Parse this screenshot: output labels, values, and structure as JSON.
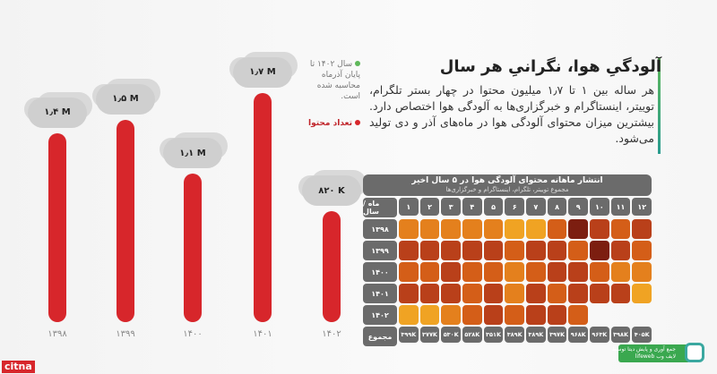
{
  "header": {
    "title": "آلودگیِ هوا، نگرانیِ هر سال",
    "body": "هر ساله بین ۱ تا ۱٫۷ میلیون محتوا در چهار بستر تلگرام، توییتر، اینستاگرام و خبرگزاری‌ها به آلودگی هوا اختصاص دارد. بیشترین میزان محتوای آلودگی هوا در ماه‌های آذر و دی تولید می‌شود."
  },
  "legend": {
    "note": "سال ۱۴۰۲ تا پایان آذرماه محاسبه شده است.",
    "series": "تعداد محتوا"
  },
  "colors": {
    "bar": "#d7262b",
    "levels": [
      "#f0a323",
      "#e4801d",
      "#d45e18",
      "#b9401a",
      "#7c1e10"
    ]
  },
  "chart_data": [
    {
      "type": "bar",
      "series_name": "تعداد محتوا",
      "categories": [
        "۱۳۹۸",
        "۱۳۹۹",
        "۱۴۰۰",
        "۱۴۰۱",
        "۱۴۰۲"
      ],
      "values": [
        1.4,
        1.5,
        1.1,
        1.7,
        0.82
      ],
      "labels": [
        "۱٫۴ M",
        "۱٫۵ M",
        "۱٫۱ M",
        "۱٫۷ M",
        "۸۲۰ K"
      ],
      "unit": "million",
      "ylim": [
        0,
        2
      ]
    },
    {
      "type": "heatmap",
      "title": "انتشار ماهانه محتوای آلودگی هوا در ۵ سال اخیر",
      "subtitle": "مجموع توییتر، تلگرام، اینستاگرام و خبرگزاری‌ها",
      "corner": "ماه / سال",
      "months": [
        "۱",
        "۲",
        "۳",
        "۴",
        "۵",
        "۶",
        "۷",
        "۸",
        "۹",
        "۱۰",
        "۱۱",
        "۱۲"
      ],
      "years": [
        "۱۳۹۸",
        "۱۳۹۹",
        "۱۴۰۰",
        "۱۴۰۱",
        "۱۴۰۲"
      ],
      "intensity_levels_1to5": [
        [
          2,
          2,
          2,
          2,
          2,
          1,
          1,
          3,
          5,
          4,
          3,
          4
        ],
        [
          4,
          4,
          4,
          4,
          4,
          3,
          4,
          4,
          3,
          5,
          4,
          3
        ],
        [
          3,
          3,
          4,
          3,
          3,
          2,
          3,
          4,
          4,
          3,
          2,
          2
        ],
        [
          4,
          4,
          4,
          3,
          4,
          2,
          4,
          3,
          4,
          4,
          4,
          1
        ],
        [
          1,
          1,
          2,
          3,
          4,
          3,
          4,
          4,
          3
        ]
      ],
      "total_label": "مجموع",
      "totals": [
        "۳۹۹K",
        "۳۷۷K",
        "۵۳۰K",
        "۵۲۸K",
        "۳۵۱K",
        "۳۸۹K",
        "۳۸۹K",
        "۳۹۷K",
        "۹۶۸K",
        "۹۶۳K",
        "۳۹۸K",
        "۴۰۵K"
      ]
    }
  ],
  "footer": {
    "logo": "citna",
    "brand_text": "جمع آوری و پایش دیتا توسط",
    "brand_name": "lifeweb",
    "brand_fa": "لایف وب"
  }
}
